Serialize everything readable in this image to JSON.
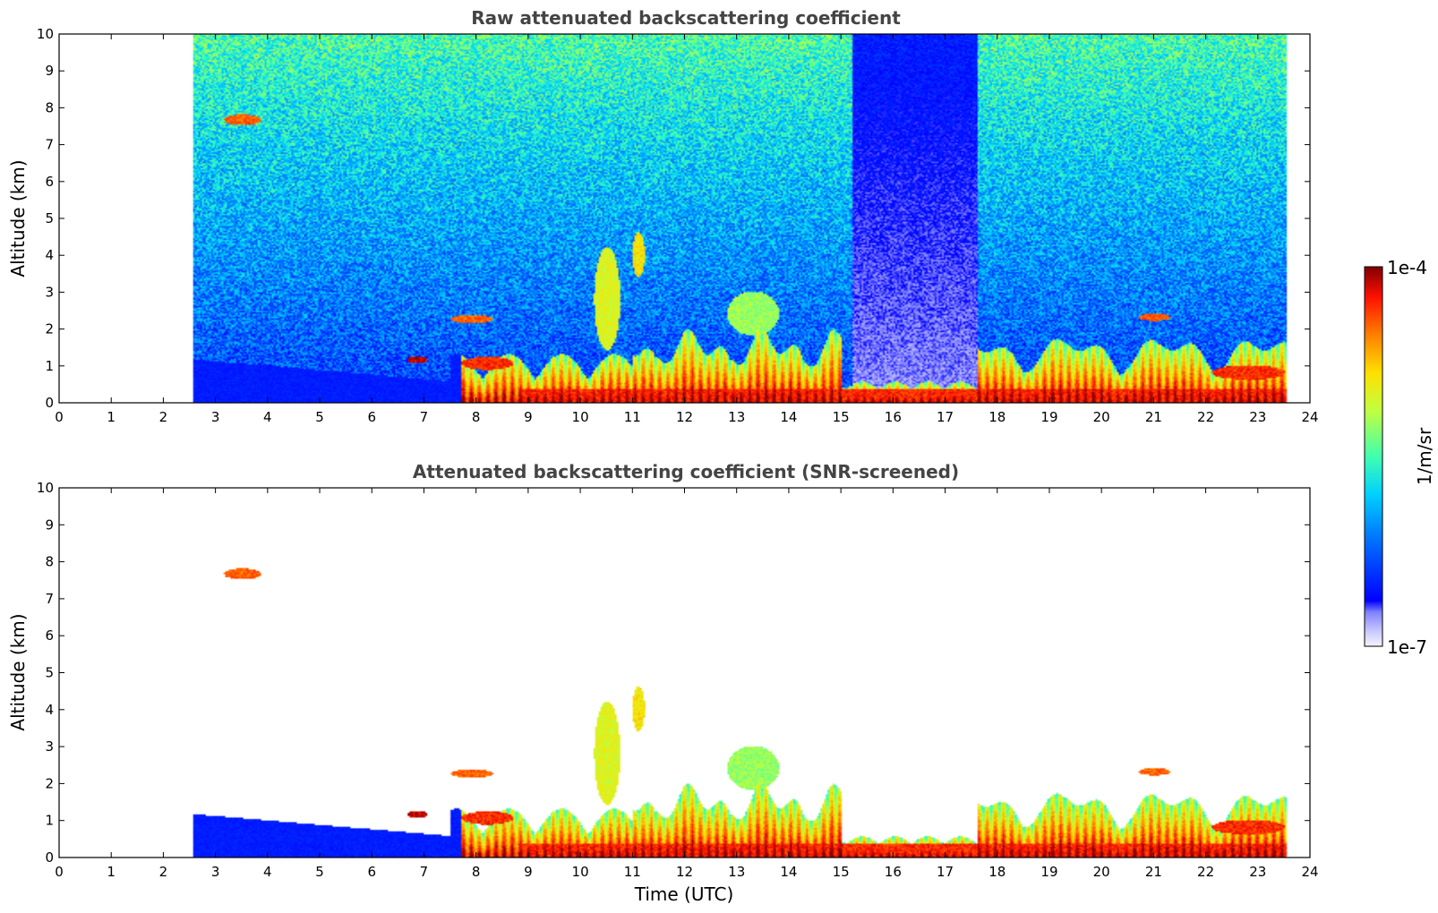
{
  "chart_data": [
    {
      "type": "heatmap",
      "title": "Raw attenuated backscattering coefficient",
      "xlabel": "",
      "ylabel": "Altitude (km)",
      "xlim": [
        0,
        24
      ],
      "ylim": [
        0,
        10
      ],
      "xticks": [
        "0",
        "1",
        "2",
        "3",
        "4",
        "5",
        "6",
        "7",
        "8",
        "9",
        "10",
        "11",
        "12",
        "13",
        "14",
        "15",
        "16",
        "17",
        "18",
        "19",
        "20",
        "21",
        "22",
        "23",
        "24"
      ],
      "yticks": [
        "0",
        "1",
        "2",
        "3",
        "4",
        "5",
        "6",
        "7",
        "8",
        "9",
        "10"
      ],
      "data_time_range": [
        2.55,
        23.55
      ],
      "screened": false
    },
    {
      "type": "heatmap",
      "title": "Attenuated backscattering coefficient (SNR-screened)",
      "xlabel": "Time (UTC)",
      "ylabel": "Altitude (km)",
      "xlim": [
        0,
        24
      ],
      "ylim": [
        0,
        10
      ],
      "xticks": [
        "0",
        "1",
        "2",
        "3",
        "4",
        "5",
        "6",
        "7",
        "8",
        "9",
        "10",
        "11",
        "12",
        "13",
        "14",
        "15",
        "16",
        "17",
        "18",
        "19",
        "20",
        "21",
        "22",
        "23",
        "24"
      ],
      "yticks": [
        "0",
        "1",
        "2",
        "3",
        "4",
        "5",
        "6",
        "7",
        "8",
        "9",
        "10"
      ],
      "data_time_range": [
        2.55,
        23.55
      ],
      "screened": true
    }
  ],
  "colorbar": {
    "label": "1/m/sr",
    "min_label": "1e-7",
    "max_label": "1e-4",
    "colormap": "jet"
  }
}
